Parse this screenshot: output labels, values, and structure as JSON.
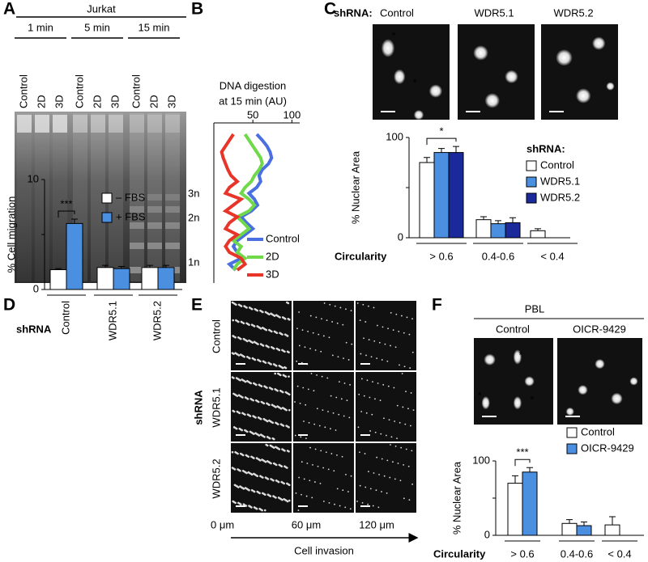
{
  "panel_labels": [
    "A",
    "B",
    "C",
    "D",
    "E",
    "F"
  ],
  "gel": {
    "cell_line": "Jurkat",
    "times": [
      "1 min",
      "5 min",
      "15 min"
    ],
    "lanes": [
      "Control",
      "2D",
      "3D",
      "Control",
      "2D",
      "3D",
      "Control",
      "2D",
      "3D"
    ]
  },
  "micrographs_c": {
    "prefix": "shRNA:",
    "labels": [
      "Control",
      "WDR5.1",
      "WDR5.2"
    ]
  },
  "invasion": {
    "group_label": "shRNA",
    "rows": [
      "Control",
      "WDR5.1",
      "WDR5.2"
    ],
    "distances": [
      "0 μm",
      "60 μm",
      "120 μm"
    ],
    "axis_label": "Cell invasion"
  },
  "micrographs_f": {
    "title": "PBL",
    "labels": [
      "Control",
      "OICR-9429"
    ]
  },
  "chart_data": [
    {
      "type": "profile",
      "title": [
        "DNA digestion",
        "at 15 min (AU)"
      ],
      "xlim": [
        0,
        110
      ],
      "xticks": [
        50,
        100
      ],
      "categories": [
        null,
        null,
        null,
        null,
        null,
        null,
        null,
        null,
        null,
        null,
        null,
        null,
        null,
        null,
        null,
        null,
        null,
        null,
        null,
        null,
        null,
        null,
        null,
        null
      ],
      "band_labels": [
        "3n",
        "2n",
        "1n"
      ],
      "series": [
        {
          "name": "Control",
          "color": "#4a6fe0",
          "values": [
            55,
            62,
            68,
            72,
            74,
            70,
            62,
            58,
            60,
            55,
            45,
            52,
            56,
            48,
            35,
            42,
            50,
            40,
            30,
            25,
            30,
            35,
            20,
            28
          ]
        },
        {
          "name": "2D",
          "color": "#6fd94a",
          "values": [
            40,
            45,
            50,
            55,
            60,
            62,
            58,
            52,
            48,
            40,
            35,
            45,
            52,
            45,
            30,
            38,
            45,
            35,
            25,
            35,
            30,
            40,
            30,
            25
          ]
        },
        {
          "name": "3D",
          "color": "#e8352a",
          "values": [
            25,
            20,
            15,
            10,
            12,
            15,
            18,
            22,
            30,
            20,
            15,
            35,
            25,
            15,
            30,
            20,
            15,
            30,
            20,
            15,
            20,
            35,
            40,
            30
          ]
        }
      ]
    },
    {
      "type": "bar",
      "y_label": "% Nuclear Area",
      "x_label": "Circularity",
      "legend_title": "shRNA:",
      "annotation": "*",
      "categories": [
        "> 0.6",
        "0.4-0.6",
        "< 0.4"
      ],
      "ylim": [
        0,
        100
      ],
      "yticks": [
        0,
        100
      ],
      "series": [
        {
          "name": "Control",
          "color": "#ffffff",
          "values": [
            75,
            18,
            7
          ],
          "errors": [
            5,
            3,
            2
          ]
        },
        {
          "name": "WDR5.1",
          "color": "#4b8fe0",
          "values": [
            85,
            14,
            0
          ],
          "errors": [
            4,
            3,
            0
          ]
        },
        {
          "name": "WDR5.2",
          "color": "#1a2a9a",
          "values": [
            85,
            15,
            0
          ],
          "errors": [
            6,
            5,
            0
          ]
        }
      ]
    },
    {
      "type": "bar",
      "y_label": "% Cell migration",
      "x_label": "shRNA",
      "annotation": "***",
      "categories": [
        "Control",
        "WDR5.1",
        "WDR5.2"
      ],
      "ylim": [
        0,
        10
      ],
      "yticks": [
        0,
        10
      ],
      "series": [
        {
          "name": "– FBS",
          "color": "#ffffff",
          "values": [
            1.8,
            2.0,
            2.0
          ],
          "errors": [
            0.1,
            0.2,
            0.2
          ]
        },
        {
          "name": "+ FBS",
          "color": "#4b8fe0",
          "values": [
            6.0,
            1.9,
            2.0
          ],
          "errors": [
            0.4,
            0.2,
            0.2
          ]
        }
      ]
    },
    {
      "type": "bar",
      "y_label": "% Nuclear Area",
      "x_label": "Circularity",
      "annotation": "***",
      "categories": [
        "> 0.6",
        "0.4-0.6",
        "< 0.4"
      ],
      "ylim": [
        0,
        100
      ],
      "yticks": [
        0,
        100
      ],
      "series": [
        {
          "name": "Control",
          "color": "#ffffff",
          "values": [
            70,
            16,
            14
          ],
          "errors": [
            10,
            5,
            11
          ]
        },
        {
          "name": "OICR-9429",
          "color": "#4b8fe0",
          "values": [
            85,
            13,
            0
          ],
          "errors": [
            6,
            5,
            0
          ]
        }
      ]
    }
  ]
}
